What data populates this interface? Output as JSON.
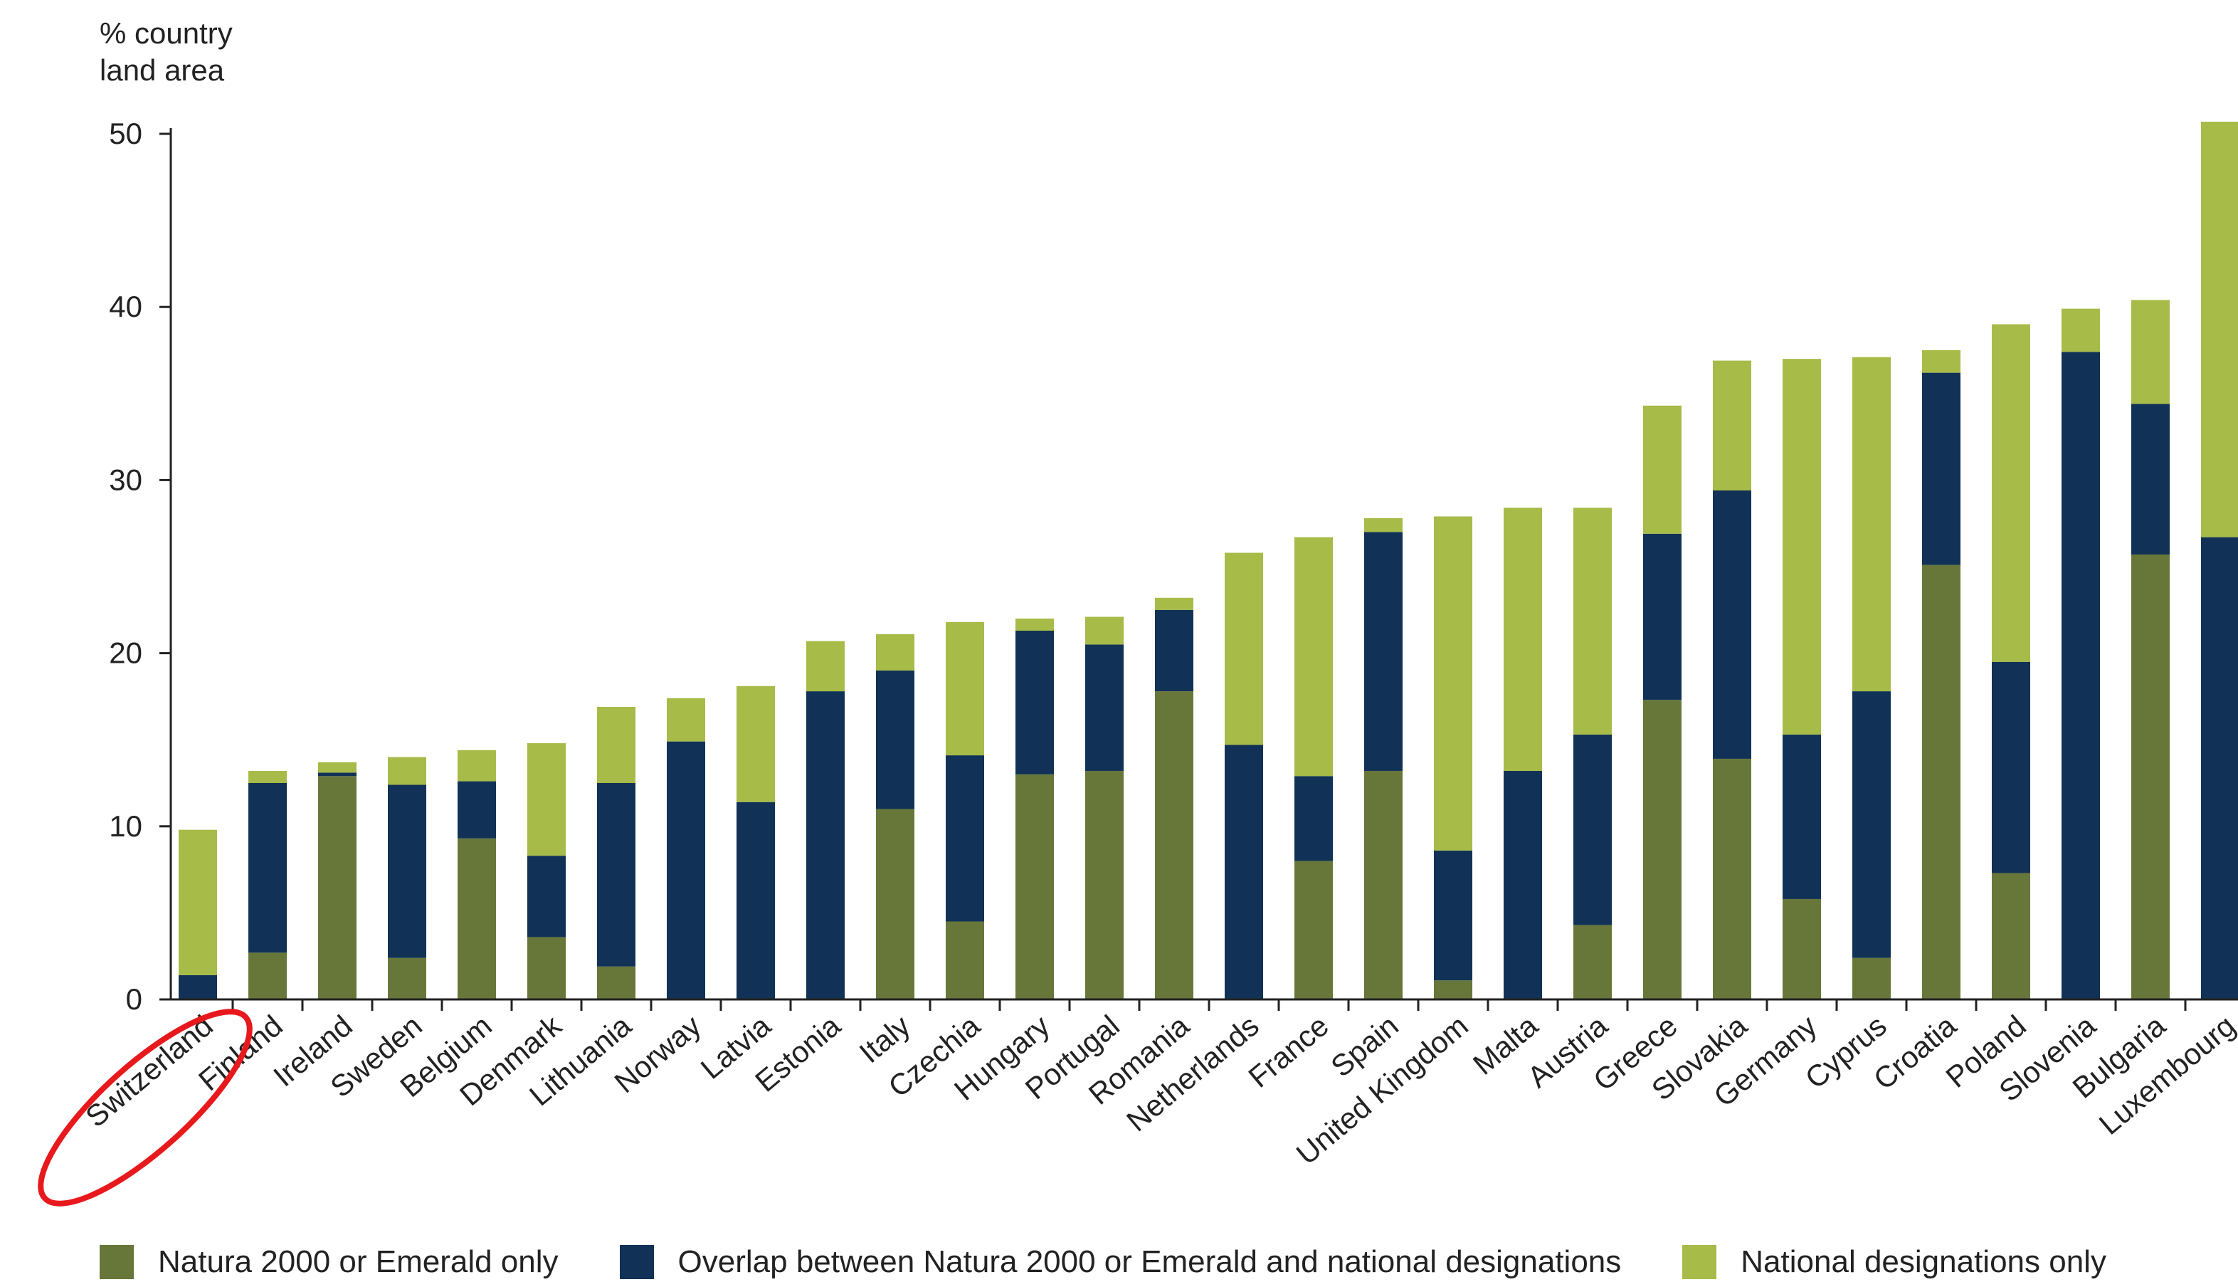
{
  "chart_data": {
    "type": "bar",
    "stacked": true,
    "ylabel": "% country land area",
    "ylabel_lines": [
      "% country",
      "land area"
    ],
    "ylim": [
      0,
      50
    ],
    "yticks": [
      0,
      10,
      20,
      30,
      40,
      50
    ],
    "categories": [
      "Switzerland",
      "Finland",
      "Ireland",
      "Sweden",
      "Belgium",
      "Denmark",
      "Lithuania",
      "Norway",
      "Latvia",
      "Estonia",
      "Italy",
      "Czechia",
      "Hungary",
      "Portugal",
      "Romania",
      "Netherlands",
      "France",
      "Spain",
      "United Kingdom",
      "Malta",
      "Austria",
      "Greece",
      "Slovakia",
      "Germany",
      "Cyprus",
      "Croatia",
      "Poland",
      "Slovenia",
      "Bulgaria",
      "Luxembourg"
    ],
    "series": [
      {
        "name": "Natura 2000 or Emerald only",
        "color": "#67773a",
        "values": [
          0,
          2.7,
          12.9,
          2.4,
          9.3,
          3.6,
          1.9,
          0,
          0,
          0,
          11,
          4.5,
          13,
          13.2,
          17.8,
          0,
          8,
          13.2,
          1.1,
          0,
          4.3,
          17.3,
          13.9,
          5.8,
          2.4,
          25.1,
          7.3,
          0,
          25.7,
          0
        ]
      },
      {
        "name": "Overlap between Natura 2000 or Emerald and national designations",
        "color": "#113256",
        "values": [
          1.4,
          9.8,
          0.2,
          10,
          3.3,
          4.7,
          10.6,
          14.9,
          11.4,
          17.8,
          8,
          9.6,
          8.3,
          7.3,
          4.7,
          14.7,
          4.9,
          13.8,
          7.5,
          13.2,
          11,
          9.6,
          15.5,
          9.5,
          15.4,
          11.1,
          12.2,
          37.4,
          8.7,
          26.7
        ]
      },
      {
        "name": "National designations only",
        "color": "#a7bb48",
        "values": [
          8.4,
          0.7,
          0.6,
          1.6,
          1.8,
          6.5,
          4.4,
          2.5,
          6.7,
          2.9,
          2.1,
          7.7,
          0.7,
          1.6,
          0.7,
          11.1,
          13.8,
          0.8,
          19.3,
          15.2,
          13.1,
          7.4,
          7.5,
          21.7,
          19.3,
          1.3,
          19.5,
          2.5,
          6,
          24
        ]
      }
    ],
    "legend_position": "bottom",
    "grid": false,
    "annotation": "Switzerland circled in red"
  }
}
